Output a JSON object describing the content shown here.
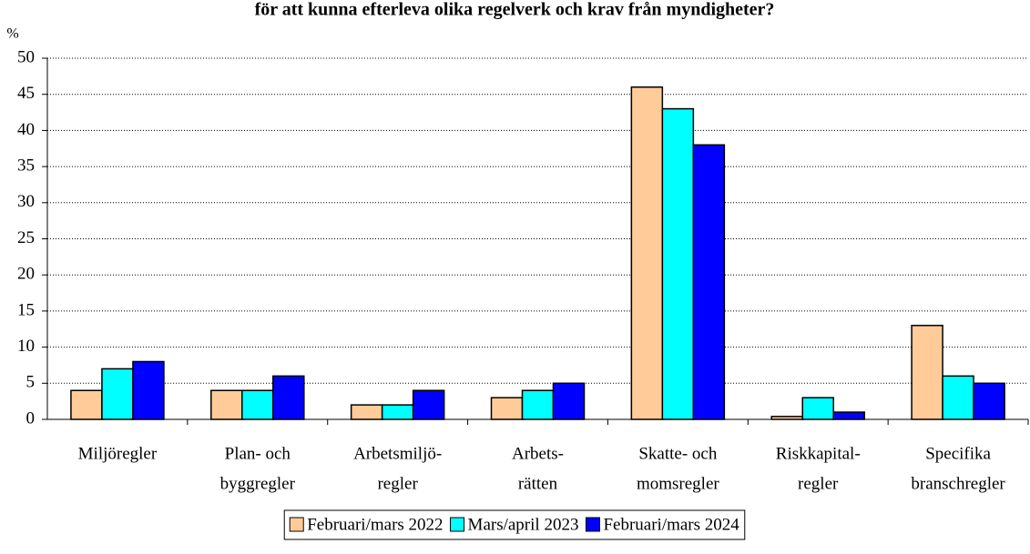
{
  "chart_data": {
    "type": "bar",
    "title": "för att kunna efterleva olika regelverk och krav från myndigheter?",
    "y_unit": "%",
    "categories": [
      [
        "Miljöregler"
      ],
      [
        "Plan- och",
        "byggregler"
      ],
      [
        "Arbetsmiljö-",
        "regler"
      ],
      [
        "Arbets-",
        "rätten"
      ],
      [
        "Skatte- och",
        "momsregler"
      ],
      [
        "Riskkapital-",
        "regler"
      ],
      [
        "Specifika",
        "branschregler"
      ]
    ],
    "series": [
      {
        "name": "Februari/mars 2022",
        "color": "#ffcc99",
        "values": [
          4,
          4,
          2,
          3,
          46,
          0.4,
          13
        ]
      },
      {
        "name": "Mars/april 2023",
        "color": "#00ffff",
        "values": [
          7,
          4,
          2,
          4,
          43,
          3,
          6
        ]
      },
      {
        "name": "Februari/mars 2024",
        "color": "#0000ff",
        "values": [
          8,
          6,
          4,
          5,
          38,
          1,
          5
        ]
      }
    ],
    "ylim": [
      0,
      50
    ],
    "yticks": [
      0,
      5,
      10,
      15,
      20,
      25,
      30,
      35,
      40,
      45,
      50
    ],
    "grid": true,
    "legend": "bottom"
  }
}
